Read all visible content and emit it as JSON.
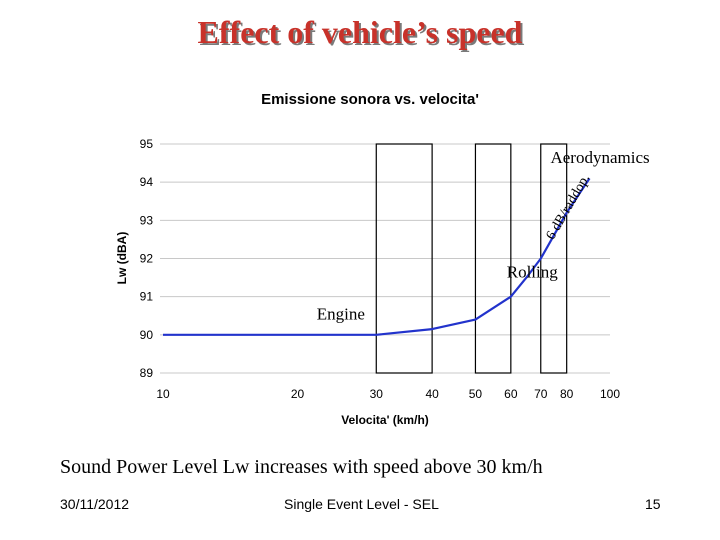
{
  "slide": {
    "title": "Effect of vehicle’s speed",
    "caption": "Sound Power Level Lw increases with speed above 30 km/h",
    "footer_date": "30/11/2012",
    "footer_center": "Single Event Level - SEL",
    "footer_page": "15"
  },
  "chart_data": {
    "type": "line",
    "title": "Emissione sonora vs. velocita'",
    "xlabel": "Velocita' (km/h)",
    "ylabel": "Lw (dBA)",
    "x_scale": "log",
    "xlim": [
      10,
      100
    ],
    "ylim": [
      89,
      95
    ],
    "x_ticks": [
      10,
      20,
      30,
      40,
      50,
      60,
      70,
      80,
      100
    ],
    "y_ticks": [
      89,
      90,
      91,
      92,
      93,
      94,
      95
    ],
    "grid": "horizontal",
    "series": [
      {
        "name": "Lw",
        "color": "#2233cc",
        "x": [
          10,
          20,
          30,
          40,
          50,
          60,
          65,
          70,
          80,
          90
        ],
        "y": [
          90.0,
          90.0,
          90.0,
          90.15,
          90.4,
          91.0,
          91.5,
          92.0,
          93.2,
          94.1
        ]
      }
    ],
    "bands": [
      {
        "from": 30,
        "to": 40
      },
      {
        "from": 50,
        "to": 60
      },
      {
        "from": 70,
        "to": 80
      }
    ],
    "annotations": [
      {
        "text": "Engine",
        "x": 25,
        "y": 90.4
      },
      {
        "text": "Rolling",
        "x": 67,
        "y": 91.5
      },
      {
        "text": "Aerodynamics",
        "x": 95,
        "y": 94.5
      },
      {
        "text": "6 dB/raddop.",
        "x": 82,
        "y": 93.3
      }
    ]
  }
}
